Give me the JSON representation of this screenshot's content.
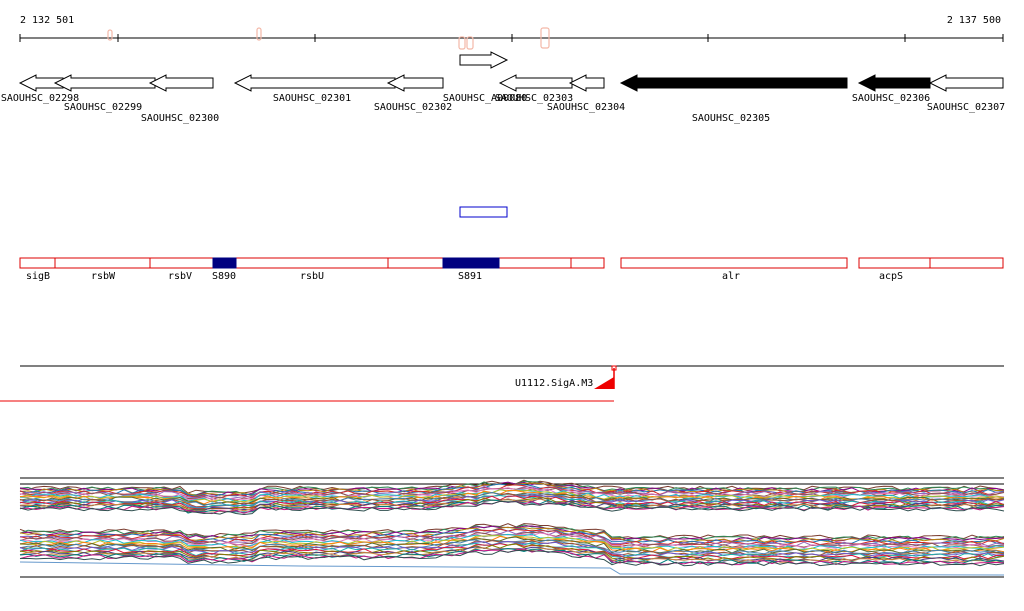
{
  "ruler": {
    "start_label": "2 132 501",
    "end_label": "2 137 500"
  },
  "genes": [
    {
      "label": "SAOUHSC_02298",
      "strand": "-",
      "fill": false
    },
    {
      "label": "SAOUHSC_02299",
      "strand": "-",
      "fill": false
    },
    {
      "label": "SAOUHSC_02300",
      "strand": "-",
      "fill": false
    },
    {
      "label": "SAOUHSC_02301",
      "strand": "-",
      "fill": false
    },
    {
      "label": "SAOUHSC_02302",
      "strand": "-",
      "fill": false
    },
    {
      "label": "SAOUHSC_A00080",
      "strand": "+",
      "fill": false
    },
    {
      "label": "SAOUHSC_02303",
      "strand": "-",
      "fill": false
    },
    {
      "label": "SAOUHSC_02304",
      "strand": "-",
      "fill": false
    },
    {
      "label": "SAOUHSC_02305",
      "strand": "-",
      "fill": true
    },
    {
      "label": "SAOUHSC_02306",
      "strand": "-",
      "fill": true
    },
    {
      "label": "SAOUHSC_02307",
      "strand": "-",
      "fill": false
    }
  ],
  "features": [
    {
      "label": "sigB"
    },
    {
      "label": "rsbW"
    },
    {
      "label": "rsbV"
    },
    {
      "label": "S890",
      "filled": true
    },
    {
      "label": "rsbU"
    },
    {
      "label": "S891",
      "filled": true
    },
    {
      "label": "alr"
    },
    {
      "label": "acpS"
    }
  ],
  "motif": {
    "label": "U1112.SigA.M3"
  },
  "colors": {
    "gene_fill": "#000000",
    "gene_outline": "#000000",
    "feature_outline": "#dd0000",
    "feature_fill": "#000080",
    "small_rna_outline": "#0000cc",
    "motif": "#ee0000",
    "peaks": "#f3b8a8"
  },
  "profile_colors": [
    "#7a3b2e",
    "#2e8b57",
    "#8b008b",
    "#b8860b",
    "#1f77b4",
    "#d62728",
    "#9467bd",
    "#8c564b",
    "#e377c2",
    "#17becf",
    "#bcbd22",
    "#ff7f0e",
    "#556b2f",
    "#4682b4",
    "#a0522d",
    "#6a5acd",
    "#20b2aa",
    "#dc143c",
    "#808000",
    "#483d8b",
    "#cd853f",
    "#008080",
    "#c71585",
    "#2f4f4f"
  ]
}
